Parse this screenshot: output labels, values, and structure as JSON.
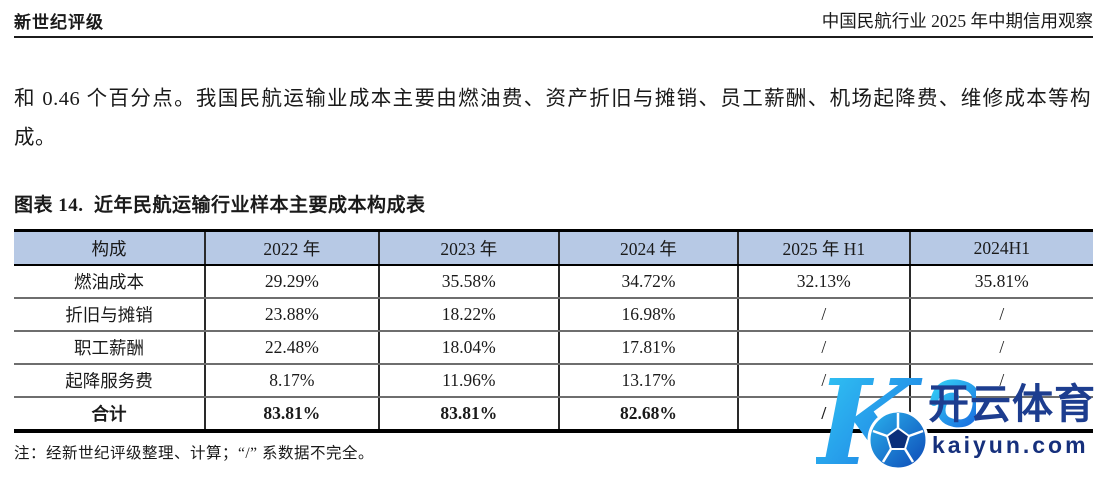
{
  "page_header": {
    "brand": "新世纪评级",
    "report_title": "中国民航行业 2025 年中期信用观察"
  },
  "body": {
    "paragraph": "和 0.46 个百分点。我国民航运输业成本主要由燃油费、资产折旧与摊销、员工薪酬、机场起降费、维修成本等构成。"
  },
  "figure": {
    "caption": "图表 14.  近年民航运输行业样本主要成本构成表",
    "note": "注：经新世纪评级整理、计算；“/” 系数据不完全。"
  },
  "table": {
    "header_bg": "#b7c9e5",
    "columns": [
      "构成",
      "2022 年",
      "2023 年",
      "2024 年",
      "2025 年 H1",
      "2024H1"
    ],
    "col_widths_pct": [
      17.7,
      16.1,
      16.7,
      16.6,
      15.9,
      17.0
    ],
    "rows": [
      {
        "label": "燃油成本",
        "values": [
          "29.29%",
          "35.58%",
          "34.72%",
          "32.13%",
          "35.81%"
        ],
        "bold": false
      },
      {
        "label": "折旧与摊销",
        "values": [
          "23.88%",
          "18.22%",
          "16.98%",
          "/",
          "/"
        ],
        "bold": false
      },
      {
        "label": "职工薪酬",
        "values": [
          "22.48%",
          "18.04%",
          "17.81%",
          "/",
          "/"
        ],
        "bold": false
      },
      {
        "label": "起降服务费",
        "values": [
          "8.17%",
          "11.96%",
          "13.17%",
          "/",
          "/"
        ],
        "bold": false
      },
      {
        "label": "合计",
        "values": [
          "83.81%",
          "83.81%",
          "82.68%",
          "/",
          ""
        ],
        "bold": true
      }
    ]
  },
  "watermark": {
    "logo_icon": "kaiyun-k-football-logo",
    "brand_cn": "开云体育",
    "brand_url": "kaiyun.com",
    "color_navy": "#1d3d8f",
    "color_url_navy": "#16307c",
    "color_cyan": "#33cdf5",
    "color_blue": "#1a6ee0"
  }
}
